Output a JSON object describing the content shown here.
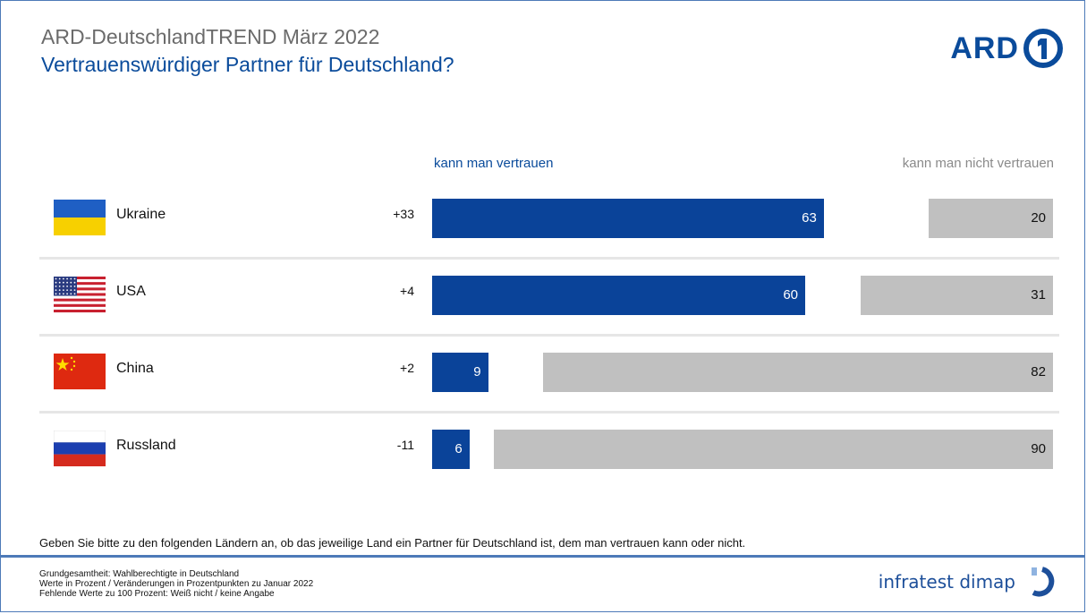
{
  "header": {
    "super_title": "ARD-DeutschlandTREND März 2022",
    "title": "Vertrauenswürdiger Partner für Deutschland?",
    "logo_text": "ARD"
  },
  "colors": {
    "accent": "#0a4b9b",
    "trust_bar": "#0a4399",
    "distrust_bar": "#c0c0c0",
    "frame": "#4d7ab8"
  },
  "chart_data": {
    "type": "bar",
    "orientation": "horizontal",
    "categories": [
      "Ukraine",
      "USA",
      "China",
      "Russland"
    ],
    "changes": [
      "+33",
      "+4",
      "+2",
      "-11"
    ],
    "series": [
      {
        "name": "kann man vertrauen",
        "values": [
          63,
          60,
          9,
          6
        ]
      },
      {
        "name": "kann man nicht vertrauen",
        "values": [
          20,
          31,
          82,
          90
        ]
      }
    ],
    "flags": [
      "ukraine-flag",
      "usa-flag",
      "china-flag",
      "russia-flag"
    ]
  },
  "question": "Geben Sie bitte zu den folgenden Ländern an, ob das jeweilige Land ein Partner für Deutschland ist, dem man vertrauen kann oder nicht.",
  "footer": {
    "notes": [
      "Grundgesamtheit: Wahlberechtigte in Deutschland",
      "Werte in Prozent / Veränderungen in Prozentpunkten zu Januar 2022",
      "Fehlende Werte zu 100 Prozent: Weiß nicht / keine Angabe"
    ],
    "brand": "infratest dimap"
  }
}
